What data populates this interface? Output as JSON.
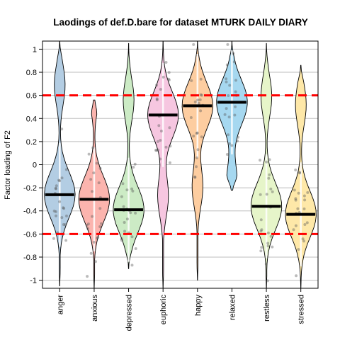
{
  "chart_data": {
    "type": "violin",
    "title": "Laodings of def.D.bare for dataset MTURK DAILY DIARY",
    "xlabel": "",
    "ylabel": "Factor loading of F2",
    "ylim": [
      -1.07,
      1.07
    ],
    "yticks": [
      "-1",
      "-0.8",
      "-0.6",
      "-0.4",
      "-0.2",
      "0",
      "0.2",
      "0.4",
      "0.6",
      "0.8",
      "1"
    ],
    "grid": true,
    "reference_lines": [
      0.6,
      -0.6
    ],
    "reference_line_color": "#ff0000",
    "categories": [
      "anger",
      "anxious",
      "depressed",
      "euphoric",
      "happy",
      "relaxed",
      "restless",
      "stressed"
    ],
    "colors": [
      "#b3cde3",
      "#fbb4ae",
      "#ccebc5",
      "#f6c6e0",
      "#fdcda0",
      "#a6d8f0",
      "#e6f5c9",
      "#fee8a8"
    ],
    "means": [
      -0.26,
      -0.3,
      -0.39,
      0.43,
      0.51,
      0.54,
      -0.36,
      -0.43
    ],
    "ranges": [
      [
        -1.05,
        1.07
      ],
      [
        -1.07,
        0.56
      ],
      [
        -0.9,
        1.05
      ],
      [
        -1.07,
        1.07
      ],
      [
        -1.0,
        1.07
      ],
      [
        -0.22,
        1.07
      ],
      [
        -1.07,
        1.05
      ],
      [
        -1.07,
        0.86
      ]
    ]
  }
}
